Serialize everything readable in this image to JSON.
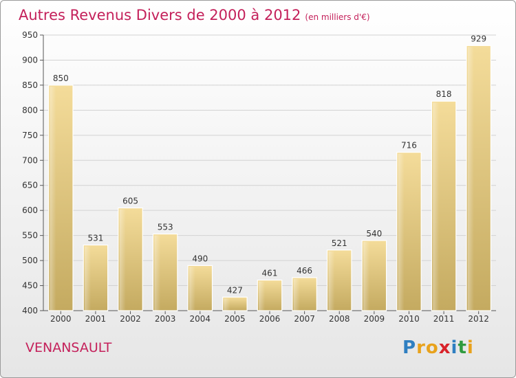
{
  "header": {
    "title": "Autres Revenus Divers de 2000 à 2012",
    "subtitle": "(en milliers d'€)"
  },
  "footer": {
    "commune": "VENANSAULT",
    "logo": {
      "letters": [
        "P",
        "r",
        "o",
        "x",
        "i",
        "t",
        "i"
      ],
      "colors": [
        "#2f7fc1",
        "#e8a21c",
        "#e8a21c",
        "#d8232a",
        "#2f7fc1",
        "#2f9b3f",
        "#e8a21c"
      ]
    }
  },
  "chart_data": {
    "type": "bar",
    "title": "Autres Revenus Divers de 2000 à 2012",
    "subtitle": "(en milliers d'€)",
    "categories": [
      "2000",
      "2001",
      "2002",
      "2003",
      "2004",
      "2005",
      "2006",
      "2007",
      "2008",
      "2009",
      "2010",
      "2011",
      "2012"
    ],
    "values": [
      850,
      531,
      605,
      553,
      490,
      427,
      461,
      466,
      521,
      540,
      716,
      818,
      929
    ],
    "ylim": [
      400,
      950
    ],
    "yticks": [
      400,
      450,
      500,
      550,
      600,
      650,
      700,
      750,
      800,
      850,
      900,
      950
    ],
    "grid": true,
    "bar_color_top": "#f4dc9a",
    "bar_color_bottom": "#c4aa60"
  }
}
